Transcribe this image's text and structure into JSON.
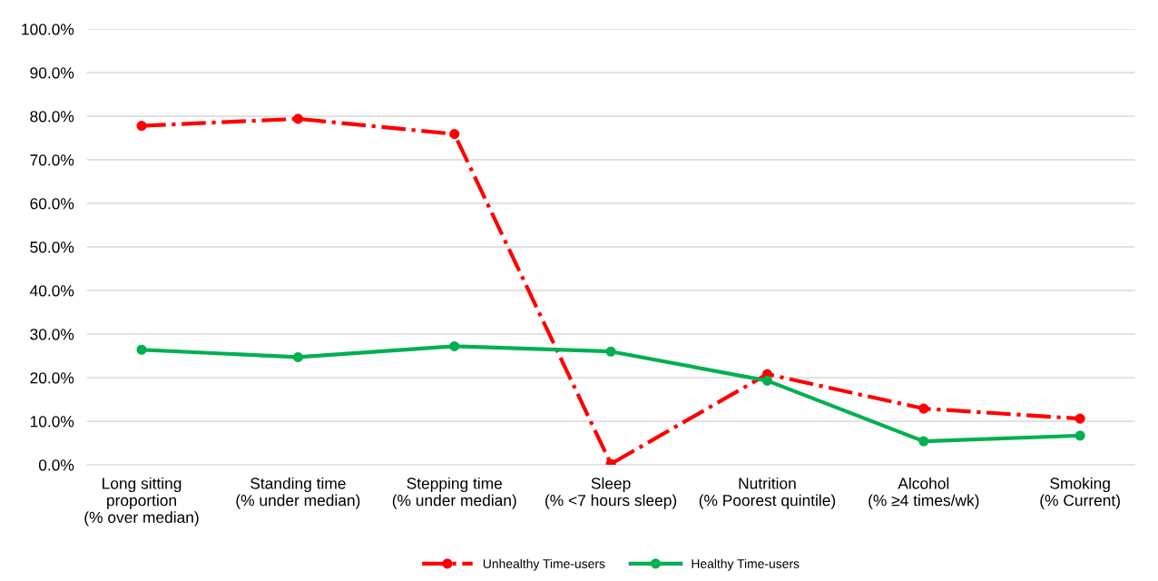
{
  "chart_data": {
    "type": "line",
    "categories": [
      "Long sitting\nproportion\n(% over median)",
      "Standing time\n(% under median)",
      "Stepping time\n(% under median)",
      "Sleep\n(% <7 hours sleep)",
      "Nutrition\n(% Poorest quintile)",
      "Alcohol\n(% ≥4 times/wk)",
      "Smoking\n(% Current)"
    ],
    "series": [
      {
        "name": "Unhealthy Time-users",
        "color": "#ff0000",
        "line_style": "dashdot",
        "values": [
          77.8,
          79.4,
          75.9,
          0.2,
          20.8,
          12.9,
          10.6
        ]
      },
      {
        "name": "Healthy Time-users",
        "color": "#00b050",
        "line_style": "solid",
        "values": [
          26.4,
          24.7,
          27.2,
          26.0,
          19.3,
          5.4,
          6.7
        ]
      }
    ],
    "ylim": [
      0,
      100
    ],
    "yticks": [
      {
        "value": 0,
        "label": "0.0%"
      },
      {
        "value": 10,
        "label": "10.0%"
      },
      {
        "value": 20,
        "label": "20.0%"
      },
      {
        "value": 30,
        "label": "30.0%"
      },
      {
        "value": 40,
        "label": "40.0%"
      },
      {
        "value": 50,
        "label": "50.0%"
      },
      {
        "value": 60,
        "label": "60.0%"
      },
      {
        "value": 70,
        "label": "70.0%"
      },
      {
        "value": 80,
        "label": "80.0%"
      },
      {
        "value": 90,
        "label": "90.0%"
      },
      {
        "value": 100,
        "label": "100.0%"
      }
    ],
    "grid": "y",
    "marker": "circle",
    "legend": "bottom"
  }
}
